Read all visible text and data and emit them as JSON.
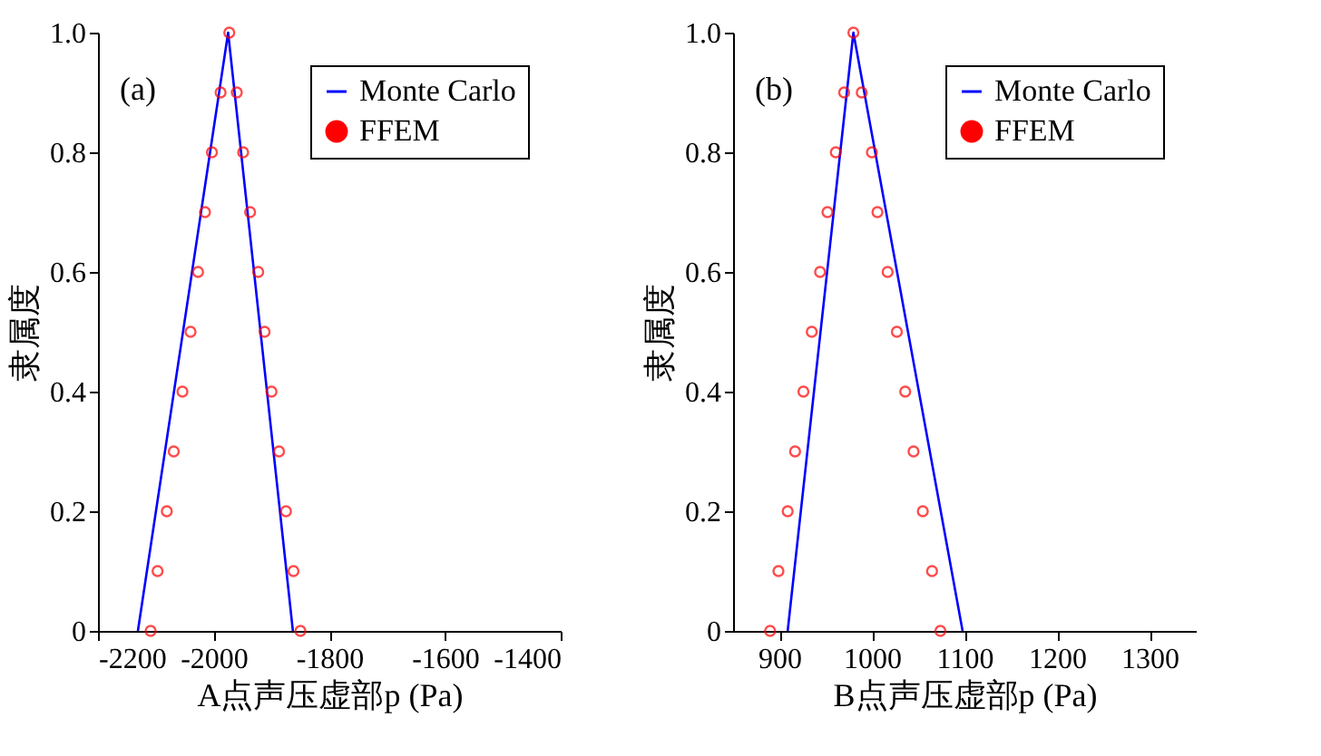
{
  "chart_data": [
    {
      "type": "line",
      "xlabel": "A点声压虚部p (Pa)",
      "ylabel": "隶属度",
      "annotations": [
        "(a)"
      ],
      "xlim": [
        -2200,
        -1400
      ],
      "xticks": [
        -2200,
        -2000,
        -1800,
        -1600,
        -1400
      ],
      "ylim": [
        0,
        1
      ],
      "yticks": [
        0,
        0.2,
        0.4,
        0.6,
        0.8,
        {
          "value": 1,
          "label": "1.0"
        }
      ],
      "grid": false,
      "legend": "top right",
      "series": [
        {
          "name": "Monte Carlo",
          "color": "#0000ff",
          "line_style": "solid",
          "x": [
            -2131,
            -1975,
            -1863
          ],
          "values": [
            0,
            1,
            0
          ]
        },
        {
          "name": "FFEM",
          "type": "scatter",
          "marker": "circle",
          "color": "#ff0000",
          "x": [
            -2109,
            -2097,
            -2081,
            -2069,
            -2054,
            -2040,
            -2027,
            -2015,
            -2003,
            -1988,
            -1973,
            -1960,
            -1949,
            -1937,
            -1923,
            -1912,
            -1900,
            -1887,
            -1875,
            -1862,
            -1850
          ],
          "values": [
            0,
            0.1,
            0.2,
            0.3,
            0.4,
            0.5,
            0.6,
            0.7,
            0.8,
            0.9,
            1,
            0.9,
            0.8,
            0.7,
            0.6,
            0.5,
            0.4,
            0.3,
            0.2,
            0.1,
            0
          ]
        }
      ]
    },
    {
      "type": "line",
      "xlabel": "B点声压虚部p (Pa)",
      "ylabel": "隶属度",
      "annotations": [
        "(b)"
      ],
      "xlim": [
        850,
        1350
      ],
      "xticks": [
        900,
        1000,
        1100,
        1200,
        1300
      ],
      "ylim": [
        0,
        1
      ],
      "yticks": [
        0,
        0.2,
        0.4,
        0.6,
        0.8,
        {
          "value": 1,
          "label": "1.0"
        }
      ],
      "grid": false,
      "legend": "top right",
      "series": [
        {
          "name": "Monte Carlo",
          "color": "#0000ff",
          "line_style": "solid",
          "x": [
            909,
            980,
            1098
          ],
          "values": [
            0,
            1,
            0
          ]
        },
        {
          "name": "FFEM",
          "type": "scatter",
          "marker": "circle",
          "color": "#ff0000",
          "x": [
            890,
            899,
            909,
            917,
            926,
            935,
            944,
            952,
            961,
            970,
            980,
            989,
            1000,
            1006,
            1017,
            1027,
            1036,
            1045,
            1055,
            1065,
            1074
          ],
          "values": [
            0,
            0.1,
            0.2,
            0.3,
            0.4,
            0.5,
            0.6,
            0.7,
            0.8,
            0.9,
            1,
            0.9,
            0.8,
            0.7,
            0.6,
            0.5,
            0.4,
            0.3,
            0.2,
            0.1,
            0
          ]
        }
      ]
    }
  ]
}
